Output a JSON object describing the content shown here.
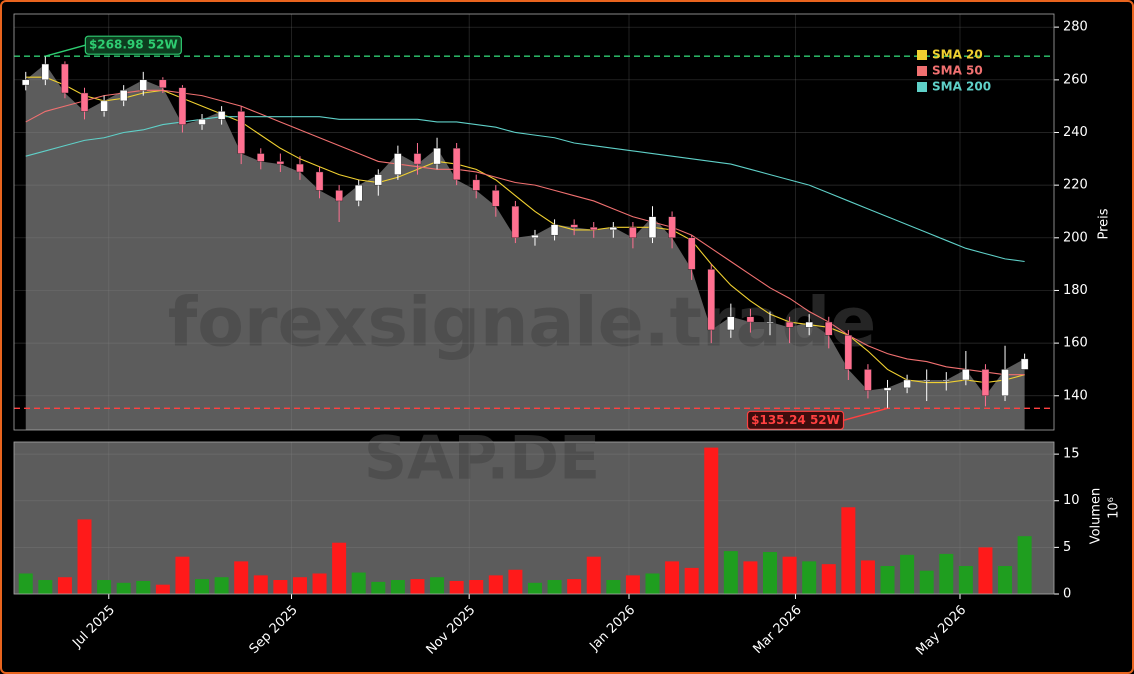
{
  "chart_data": {
    "type": "candlestick",
    "watermark": "forexsignale.trade",
    "symbol": "SAP.DE",
    "legend": "upper right",
    "categories": [
      null,
      null,
      null,
      null,
      null,
      null,
      null,
      null,
      null,
      null,
      null,
      null,
      null,
      null,
      null,
      null,
      null,
      null,
      null,
      null,
      null,
      null,
      null,
      null,
      null,
      null,
      null,
      null,
      null,
      null,
      null,
      null,
      null,
      null,
      null,
      null,
      null,
      null,
      null,
      null,
      null,
      null,
      null,
      null,
      null,
      null,
      null,
      null,
      null,
      null,
      null,
      null
    ],
    "xlim": [
      -0.6,
      52.5
    ],
    "xticks": [
      {
        "value": 4.24,
        "label": "Jul 2025"
      },
      {
        "value": 13.57,
        "label": "Sep 2025"
      },
      {
        "value": 22.64,
        "label": "Nov 2025"
      },
      {
        "value": 30.8,
        "label": "Jan 2026"
      },
      {
        "value": 39.3,
        "label": "Mar 2026"
      },
      {
        "value": 47.7,
        "label": "May 2026"
      }
    ],
    "open": [
      258,
      260,
      266,
      255,
      248,
      252,
      256,
      260,
      257,
      243,
      245,
      248,
      232,
      229,
      228,
      225,
      218,
      214,
      220,
      224,
      232,
      228,
      234,
      222,
      218,
      212,
      200,
      201,
      205,
      204,
      203,
      204,
      200,
      208,
      200,
      188,
      165,
      170,
      168,
      168,
      166,
      168,
      163,
      150,
      142,
      143,
      146,
      146,
      146,
      150,
      140,
      150
    ],
    "high": [
      263,
      269,
      267,
      257,
      254,
      258,
      263,
      261,
      258,
      247,
      250,
      250,
      234,
      232,
      231,
      227,
      220,
      222,
      226,
      235,
      236,
      238,
      236,
      224,
      220,
      214,
      203,
      207,
      207,
      206,
      206,
      206,
      212,
      210,
      201,
      190,
      175,
      173,
      172,
      170,
      171,
      170,
      165,
      152,
      146,
      148,
      150,
      149,
      157,
      152,
      159,
      156
    ],
    "low": [
      256,
      258,
      253,
      245,
      246,
      250,
      254,
      255,
      240,
      241,
      243,
      228,
      226,
      225,
      222,
      215,
      206,
      212,
      216,
      222,
      224,
      226,
      220,
      215,
      208,
      198,
      197,
      199,
      201,
      200,
      200,
      196,
      198,
      196,
      184,
      160,
      162,
      164,
      163,
      160,
      163,
      158,
      146,
      139,
      135.24,
      141,
      138,
      142,
      144,
      136,
      138,
      150
    ],
    "close": [
      260,
      266,
      255,
      248,
      252,
      256,
      260,
      257,
      243,
      245,
      248,
      232,
      229,
      228,
      225,
      218,
      214,
      220,
      224,
      232,
      228,
      234,
      222,
      218,
      212,
      200,
      201,
      205,
      204,
      203,
      204,
      200,
      208,
      200,
      188,
      165,
      170,
      168,
      168,
      166,
      168,
      163,
      150,
      142,
      143,
      146,
      146,
      146,
      150,
      140,
      150,
      154
    ],
    "up_color": "#ffffff",
    "down_color": "#ff7090",
    "area_color": "#5c5c5c",
    "ylim": [
      127,
      285
    ],
    "yticks": [
      140,
      160,
      180,
      200,
      220,
      240,
      260,
      280
    ],
    "ylabel": "Preis",
    "grid": true,
    "sma": [
      {
        "name": "SMA 20",
        "color": "#f0d030",
        "values": [
          261,
          261,
          258,
          254,
          252,
          253,
          255,
          256,
          253,
          250,
          247,
          244,
          239,
          234,
          230,
          227,
          224,
          222,
          221,
          223,
          226,
          229,
          228,
          226,
          222,
          216,
          210,
          205,
          203,
          203,
          204,
          204,
          204,
          203,
          199,
          190,
          182,
          176,
          171,
          168,
          167,
          166,
          163,
          157,
          150,
          146,
          145,
          145,
          146,
          145,
          146,
          148
        ]
      },
      {
        "name": "SMA 50",
        "color": "#f07070",
        "values": [
          244,
          248,
          250,
          252,
          254,
          255,
          256,
          256,
          255,
          254,
          252,
          250,
          247,
          244,
          241,
          238,
          235,
          232,
          229,
          228,
          227,
          226,
          226,
          225,
          223,
          221,
          220,
          218,
          216,
          214,
          211,
          208,
          206,
          204,
          201,
          196,
          191,
          186,
          181,
          177,
          172,
          168,
          163,
          159,
          156,
          154,
          153,
          151,
          150,
          149,
          148,
          148
        ]
      },
      {
        "name": "SMA 200",
        "color": "#5fd0c8",
        "values": [
          231,
          233,
          235,
          237,
          238,
          240,
          241,
          243,
          244,
          245,
          246,
          246,
          246,
          246,
          246,
          246,
          245,
          245,
          245,
          245,
          245,
          244,
          244,
          243,
          242,
          240,
          239,
          238,
          236,
          235,
          234,
          233,
          232,
          231,
          230,
          229,
          228,
          226,
          224,
          222,
          220,
          217,
          214,
          211,
          208,
          205,
          202,
          199,
          196,
          194,
          192,
          191
        ]
      }
    ],
    "levels": [
      {
        "value": 268.98,
        "label": "$268.98 52W",
        "color": "#2ecc71",
        "at": 1
      },
      {
        "value": 135.24,
        "label": "$135.24 52W",
        "color": "#ff4040",
        "at": 44
      }
    ],
    "volume": {
      "values": [
        2.2,
        1.5,
        1.8,
        8.0,
        1.5,
        1.2,
        1.4,
        1.0,
        4.0,
        1.6,
        1.8,
        3.5,
        2.0,
        1.5,
        1.8,
        2.2,
        5.5,
        2.3,
        1.3,
        1.5,
        1.6,
        1.8,
        1.4,
        1.5,
        2.0,
        2.6,
        1.2,
        1.5,
        1.6,
        4.0,
        1.5,
        2.0,
        2.2,
        3.5,
        2.8,
        15.7,
        4.6,
        3.5,
        4.5,
        4.0,
        3.5,
        3.2,
        9.3,
        3.6,
        3.0,
        4.2,
        2.5,
        4.3,
        3.0,
        5.0,
        3.0,
        6.2
      ],
      "ylim": [
        0,
        16.3
      ],
      "yticks": [
        0,
        5,
        10,
        15
      ],
      "ylabel": "Volumen",
      "scale_label": "10⁶",
      "up_color": "#1f9e1f",
      "down_color": "#ff1a1a"
    }
  }
}
